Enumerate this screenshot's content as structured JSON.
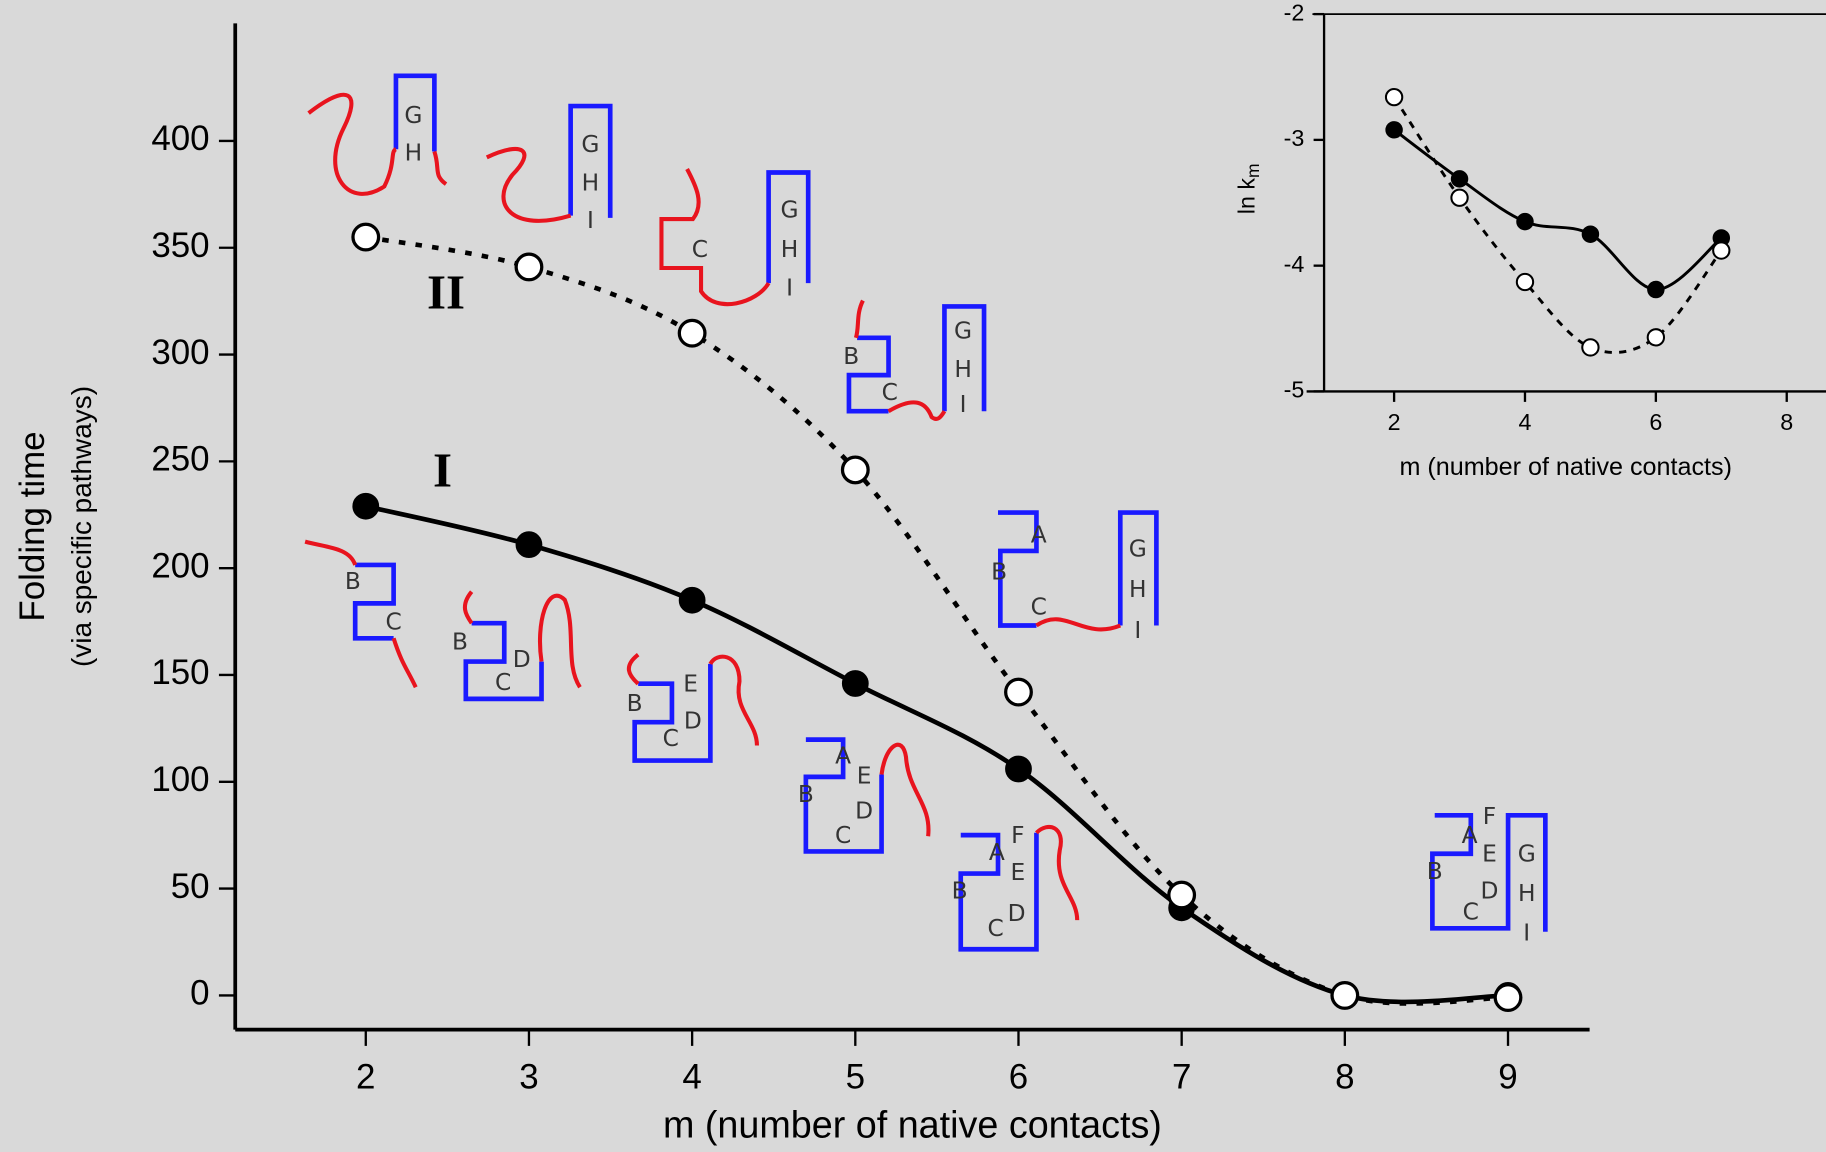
{
  "chart_data": [
    {
      "type": "line",
      "xlabel": "m (number of native contacts)",
      "ylabel": "Folding time",
      "ylabel_sub": "(via specific pathways)",
      "x": [
        2,
        3,
        4,
        5,
        6,
        7,
        8,
        9
      ],
      "series": [
        {
          "name": "I",
          "color": "#000000",
          "marker": "filled",
          "style": "solid",
          "values": [
            229,
            211,
            185,
            146,
            106,
            41,
            0,
            0
          ]
        },
        {
          "name": "II",
          "color": "#000000",
          "marker": "open",
          "style": "dotted",
          "values": [
            355,
            341,
            310,
            246,
            142,
            47,
            0,
            -1
          ]
        }
      ],
      "xlim": [
        1.2,
        9.5
      ],
      "ylim": [
        -16,
        455
      ],
      "xticks": [
        2,
        3,
        4,
        5,
        6,
        7,
        8,
        9
      ],
      "yticks": [
        0,
        50,
        100,
        150,
        200,
        250,
        300,
        350,
        400
      ]
    },
    {
      "type": "line",
      "xlabel": "m (number of native contacts)",
      "ylabel": "ln k",
      "ylabel_sub": "m",
      "x": [
        2,
        3,
        4,
        5,
        6,
        7
      ],
      "series": [
        {
          "color": "#000000",
          "marker": "filled",
          "style": "solid",
          "values": [
            -2.92,
            -3.31,
            -3.65,
            -3.75,
            -4.19,
            -3.78
          ]
        },
        {
          "color": "#000000",
          "marker": "open",
          "style": "dashed",
          "values": [
            -2.66,
            -3.46,
            -4.13,
            -4.65,
            -4.57,
            -3.88
          ]
        }
      ],
      "xlim": [
        0.93,
        8.6
      ],
      "ylim": [
        -5,
        -2
      ],
      "xticks": [
        2,
        4,
        6,
        8
      ],
      "yticks": [
        -2,
        -3,
        -4,
        -5
      ]
    }
  ],
  "diagrams": [
    {
      "labels": [
        "G",
        "H"
      ]
    },
    {
      "labels": [
        "G",
        "H",
        "I"
      ]
    },
    {
      "labels": [
        "C",
        "G",
        "H",
        "I"
      ]
    },
    {
      "labels": [
        "B",
        "C",
        "G",
        "H",
        "I"
      ]
    },
    {
      "labels": [
        "A",
        "B",
        "C",
        "G",
        "H",
        "I"
      ]
    },
    {
      "labels": [
        "B",
        "C"
      ]
    },
    {
      "labels": [
        "B",
        "C",
        "D"
      ]
    },
    {
      "labels": [
        "B",
        "C",
        "D",
        "E"
      ]
    },
    {
      "labels": [
        "A",
        "B",
        "C",
        "D",
        "E"
      ]
    },
    {
      "labels": [
        "F",
        "A",
        "E",
        "B",
        "D",
        "C"
      ]
    },
    {
      "labels": [
        "F",
        "A",
        "E",
        "G",
        "B",
        "D",
        "H",
        "C",
        "I"
      ]
    }
  ]
}
